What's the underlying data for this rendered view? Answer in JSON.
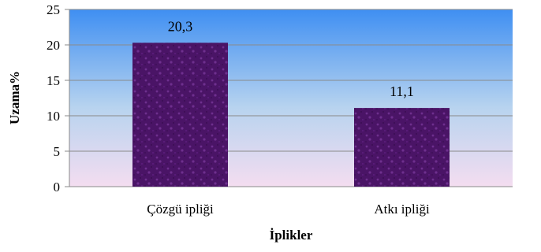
{
  "chart_data": {
    "type": "bar",
    "categories": [
      "Çözgü ipliği",
      "Atkı ipliği"
    ],
    "values": [
      20.3,
      11.1
    ],
    "data_labels": [
      "20,3",
      "11,1"
    ],
    "xlabel": "İplikler",
    "ylabel": "Uzama%",
    "ylim": [
      0,
      25
    ],
    "y_ticks": [
      0,
      5,
      10,
      15,
      20,
      25
    ],
    "grid": true,
    "legend": "none",
    "colors": {
      "bar": "#4a1466",
      "bar_speckle": "#6e2f8e",
      "plot_top": "#3f8ff2",
      "plot_mid": "#b7d3ef",
      "plot_bottom": "#f4ddf0",
      "gridline": "#8a8a8a"
    }
  }
}
